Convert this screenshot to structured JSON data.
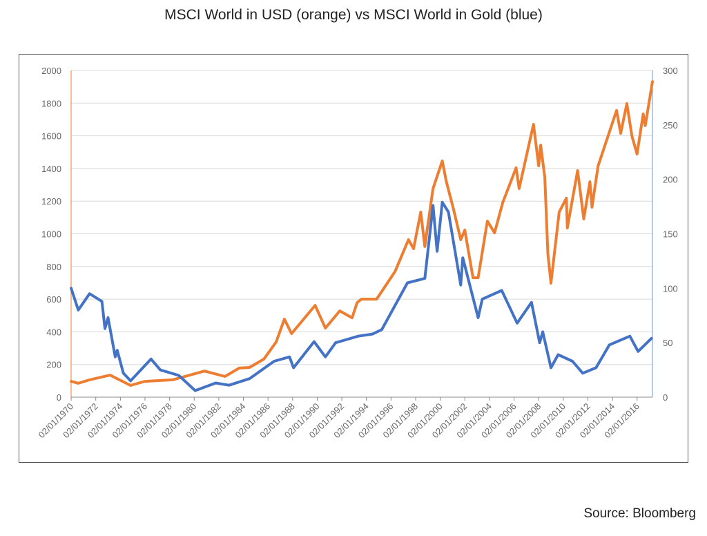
{
  "chart_data": {
    "type": "line",
    "title": "MSCI World in USD (orange) vs MSCI World in Gold (blue)",
    "source": "Source: Bloomberg",
    "x_ticks": [
      "02/01/1970",
      "02/01/1972",
      "02/01/1974",
      "02/01/1976",
      "02/01/1978",
      "02/01/1980",
      "02/01/1982",
      "02/01/1984",
      "02/01/1986",
      "02/01/1988",
      "02/01/1990",
      "02/01/1992",
      "02/01/1994",
      "02/01/1996",
      "02/01/1998",
      "02/01/2000",
      "02/01/2002",
      "02/01/2004",
      "02/01/2006",
      "02/01/2008",
      "02/01/2010",
      "02/01/2012",
      "02/01/2014",
      "02/01/2016"
    ],
    "xlim": [
      "1970-01",
      "2017-04"
    ],
    "y_left": {
      "ticks": [
        "0",
        "200",
        "400",
        "600",
        "800",
        "1000",
        "1200",
        "1400",
        "1600",
        "1800",
        "2000"
      ],
      "ylim": [
        0,
        2000
      ]
    },
    "y_right": {
      "ticks": [
        "0",
        "50",
        "100",
        "150",
        "200",
        "250",
        "300"
      ],
      "ylim": [
        0,
        300
      ]
    },
    "grid": true,
    "series": [
      {
        "color": "#ED7D31",
        "axis": "left",
        "points": [
          [
            "1970-01",
            97
          ],
          [
            "1970-08",
            85
          ],
          [
            "1971-07",
            106
          ],
          [
            "1973-03",
            135
          ],
          [
            "1974-11",
            72
          ],
          [
            "1976-01",
            97
          ],
          [
            "1978-04",
            106
          ],
          [
            "1980-11",
            160
          ],
          [
            "1982-07",
            127
          ],
          [
            "1983-09",
            178
          ],
          [
            "1984-07",
            182
          ],
          [
            "1985-09",
            233
          ],
          [
            "1986-09",
            338
          ],
          [
            "1987-05",
            478
          ],
          [
            "1987-12",
            389
          ],
          [
            "1989-11",
            562
          ],
          [
            "1990-09",
            423
          ],
          [
            "1991-11",
            528
          ],
          [
            "1992-11",
            486
          ],
          [
            "1993-04",
            579
          ],
          [
            "1993-08",
            600
          ],
          [
            "1994-11",
            600
          ],
          [
            "1996-05",
            770
          ],
          [
            "1997-06",
            964
          ],
          [
            "1997-11",
            909
          ],
          [
            "1998-06",
            1133
          ],
          [
            "1998-10",
            922
          ],
          [
            "1999-06",
            1277
          ],
          [
            "2000-03",
            1446
          ],
          [
            "2000-07",
            1319
          ],
          [
            "2001-02",
            1150
          ],
          [
            "2001-09",
            964
          ],
          [
            "2002-01",
            1023
          ],
          [
            "2002-09",
            731
          ],
          [
            "2003-02",
            731
          ],
          [
            "2003-11",
            1078
          ],
          [
            "2004-06",
            1006
          ],
          [
            "2005-02",
            1192
          ],
          [
            "2006-03",
            1404
          ],
          [
            "2006-06",
            1277
          ],
          [
            "2007-08",
            1670
          ],
          [
            "2008-01",
            1416
          ],
          [
            "2008-03",
            1543
          ],
          [
            "2008-07",
            1345
          ],
          [
            "2008-10",
            880
          ],
          [
            "2009-01",
            698
          ],
          [
            "2009-09",
            1133
          ],
          [
            "2010-04",
            1218
          ],
          [
            "2010-05",
            1036
          ],
          [
            "2011-03",
            1387
          ],
          [
            "2011-09",
            1091
          ],
          [
            "2012-03",
            1319
          ],
          [
            "2012-05",
            1163
          ],
          [
            "2012-11",
            1416
          ],
          [
            "2014-05",
            1755
          ],
          [
            "2014-09",
            1615
          ],
          [
            "2015-03",
            1797
          ],
          [
            "2015-08",
            1598
          ],
          [
            "2016-01",
            1488
          ],
          [
            "2016-07",
            1734
          ],
          [
            "2016-09",
            1662
          ],
          [
            "2017-04",
            1932
          ]
        ]
      },
      {
        "color": "#4472C4",
        "axis": "right",
        "points": [
          [
            "1970-01",
            100
          ],
          [
            "1970-08",
            80
          ],
          [
            "1971-07",
            95
          ],
          [
            "1972-07",
            88
          ],
          [
            "1972-10",
            63
          ],
          [
            "1973-01",
            73
          ],
          [
            "1973-08",
            37
          ],
          [
            "1973-10",
            43
          ],
          [
            "1974-04",
            22
          ],
          [
            "1974-11",
            15
          ],
          [
            "1976-07",
            35
          ],
          [
            "1977-04",
            25
          ],
          [
            "1978-10",
            20
          ],
          [
            "1980-02",
            6
          ],
          [
            "1981-10",
            13
          ],
          [
            "1982-11",
            11
          ],
          [
            "1984-07",
            17
          ],
          [
            "1986-07",
            33
          ],
          [
            "1987-10",
            37
          ],
          [
            "1988-02",
            27
          ],
          [
            "1989-10",
            51
          ],
          [
            "1990-09",
            37
          ],
          [
            "1991-07",
            50
          ],
          [
            "1993-05",
            56
          ],
          [
            "1994-07",
            58
          ],
          [
            "1995-04",
            62
          ],
          [
            "1997-05",
            105
          ],
          [
            "1998-10",
            109
          ],
          [
            "1999-06",
            176
          ],
          [
            "1999-10",
            134
          ],
          [
            "2000-03",
            179
          ],
          [
            "2000-09",
            170
          ],
          [
            "2001-09",
            103
          ],
          [
            "2001-11",
            128
          ],
          [
            "2003-02",
            73
          ],
          [
            "2003-06",
            90
          ],
          [
            "2005-01",
            98
          ],
          [
            "2006-04",
            68
          ],
          [
            "2007-06",
            87
          ],
          [
            "2008-02",
            50
          ],
          [
            "2008-05",
            60
          ],
          [
            "2009-01",
            27
          ],
          [
            "2009-08",
            39
          ],
          [
            "2010-10",
            33
          ],
          [
            "2011-08",
            22
          ],
          [
            "2012-09",
            27
          ],
          [
            "2013-10",
            48
          ],
          [
            "2015-06",
            56
          ],
          [
            "2016-02",
            42
          ],
          [
            "2017-03",
            54
          ]
        ]
      }
    ]
  }
}
